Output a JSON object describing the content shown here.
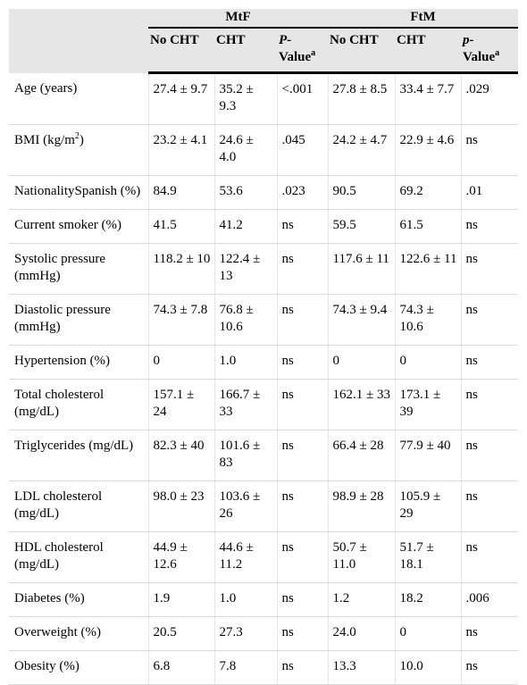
{
  "header": {
    "group_mtf": "MtF",
    "group_ftm": "FtM",
    "columns": [
      {
        "label": "No CHT"
      },
      {
        "label": "CHT"
      },
      {
        "label_italic": "P-",
        "label_rest": "Value",
        "sup": "a"
      },
      {
        "label": "No CHT"
      },
      {
        "label": "CHT"
      },
      {
        "label_italic": "p-",
        "label_rest": "Value",
        "sup": "a"
      }
    ]
  },
  "rows": [
    {
      "label": "Age (years)",
      "cells": [
        "27.4 ± 9.7",
        "35.2 ± 9.3",
        "<.001",
        "27.8 ± 8.5",
        "33.4 ± 7.7",
        ".029"
      ]
    },
    {
      "label": "BMI (kg/m",
      "label_sup": "2",
      "label_after": ")",
      "cells": [
        "23.2 ± 4.1",
        "24.6 ± 4.0",
        ".045",
        "24.2 ± 4.7",
        "22.9 ± 4.6",
        "ns"
      ]
    },
    {
      "label": "NationalitySpanish (%)",
      "cells": [
        "84.9",
        "53.6",
        ".023",
        "90.5",
        "69.2",
        ".01"
      ]
    },
    {
      "label": "Current smoker (%)",
      "cells": [
        "41.5",
        "41.2",
        "ns",
        "59.5",
        "61.5",
        "ns"
      ]
    },
    {
      "label": "Systolic pressure (mmHg)",
      "cells": [
        "118.2 ± 10",
        "122.4 ± 13",
        "ns",
        "117.6 ± 11",
        "122.6 ± 11",
        "ns"
      ]
    },
    {
      "label": "Diastolic pressure (mmHg)",
      "cells": [
        "74.3 ± 7.8",
        "76.8 ± 10.6",
        "ns",
        "74.3 ± 9.4",
        "74.3 ± 10.6",
        "ns"
      ]
    },
    {
      "label": "Hypertension (%)",
      "cells": [
        "0",
        "1.0",
        "ns",
        "0",
        "0",
        "ns"
      ]
    },
    {
      "label": "Total cholesterol (mg/dL)",
      "cells": [
        "157.1 ± 24",
        "166.7 ± 33",
        "ns",
        "162.1 ± 33",
        "173.1 ± 39",
        "ns"
      ]
    },
    {
      "label": "Triglycerides (mg/dL)",
      "cells": [
        "82.3 ± 40",
        "101.6 ± 83",
        "ns",
        "66.4 ± 28",
        "77.9 ± 40",
        "ns"
      ]
    },
    {
      "label": "LDL cholesterol (mg/dL)",
      "cells": [
        "98.0 ± 23",
        "103.6 ± 26",
        "ns",
        "98.9 ± 28",
        "105.9 ± 29",
        "ns"
      ]
    },
    {
      "label": "HDL cholesterol (mg/dL)",
      "cells": [
        "44.9 ± 12.6",
        "44.6 ± 11.2",
        "ns",
        "50.7 ± 11.0",
        "51.7 ± 18.1",
        "ns"
      ]
    },
    {
      "label": "Diabetes (%)",
      "cells": [
        "1.9",
        "1.0",
        "ns",
        "1.2",
        "18.2",
        ".006"
      ]
    },
    {
      "label": "Overweight (%)",
      "cells": [
        "20.5",
        "27.3",
        "ns",
        "24.0",
        "0",
        "ns"
      ]
    },
    {
      "label": "Obesity (%)",
      "cells": [
        "6.8",
        "7.8",
        "ns",
        "13.3",
        "10.0",
        "ns"
      ]
    }
  ]
}
